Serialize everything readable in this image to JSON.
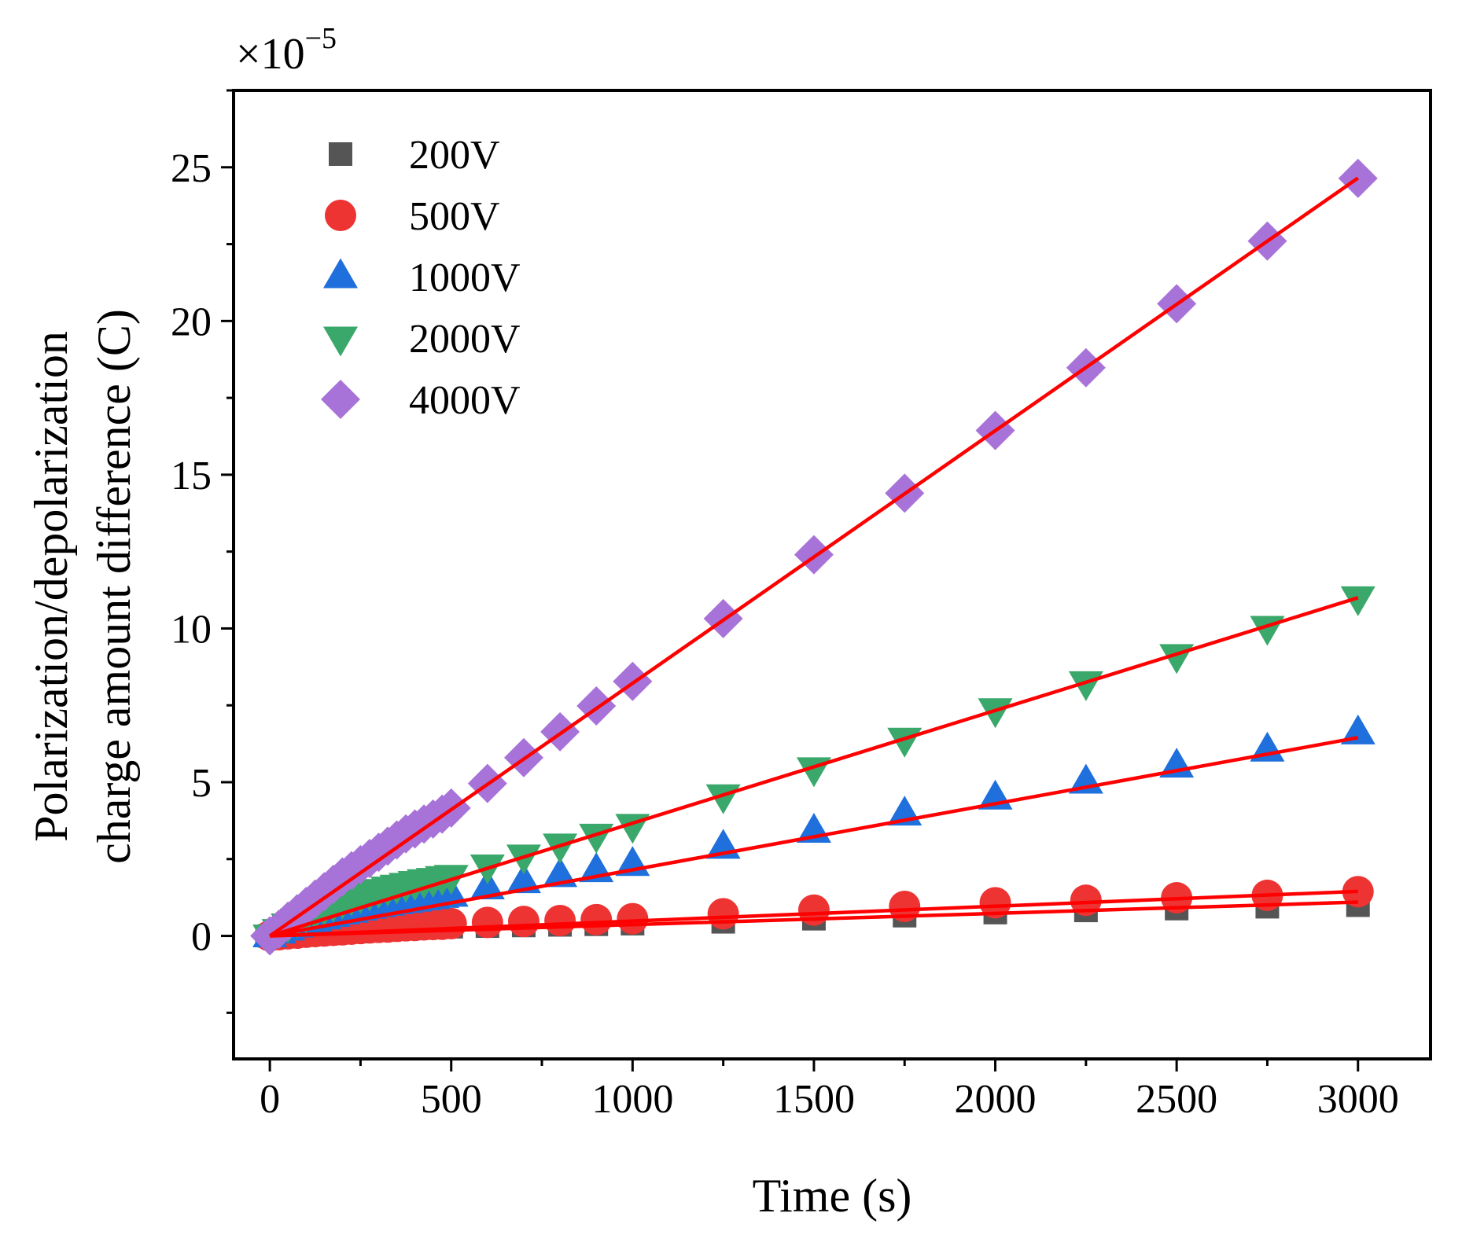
{
  "chart_data": {
    "type": "scatter",
    "title": "",
    "xlabel": "Time (s)",
    "ylabel_line1": "Polarization/depolarization",
    "ylabel_line2": "charge amount difference (C)",
    "multiplier_base": "×10",
    "multiplier_exp": "−5",
    "xlim": [
      -100,
      3200
    ],
    "ylim": [
      -4,
      27.5
    ],
    "xticks": [
      0,
      500,
      1000,
      1500,
      2000,
      2500,
      3000
    ],
    "xtick_labels": [
      "0",
      "500",
      "1000",
      "1500",
      "2000",
      "2500",
      "3000"
    ],
    "yticks": [
      0,
      5,
      10,
      15,
      20,
      25
    ],
    "ytick_labels": [
      "0",
      "5",
      "10",
      "15",
      "20",
      "25"
    ],
    "legend_position": "top-left",
    "fit_color": "#ff0000",
    "x": [
      0,
      25,
      50,
      75,
      100,
      125,
      150,
      175,
      200,
      225,
      250,
      275,
      300,
      325,
      350,
      375,
      400,
      425,
      450,
      475,
      500,
      600,
      700,
      800,
      900,
      1000,
      1250,
      1500,
      1750,
      2000,
      2250,
      2500,
      2750,
      3000
    ],
    "series": [
      {
        "name": "200V",
        "marker": "square",
        "color": "#555555",
        "values": [
          0,
          0.03,
          0.05,
          0.07,
          0.09,
          0.11,
          0.12,
          0.14,
          0.16,
          0.17,
          0.19,
          0.2,
          0.21,
          0.22,
          0.24,
          0.25,
          0.26,
          0.27,
          0.28,
          0.29,
          0.3,
          0.32,
          0.34,
          0.36,
          0.38,
          0.4,
          0.46,
          0.56,
          0.66,
          0.76,
          0.83,
          0.89,
          0.95,
          1.0
        ],
        "fit": [
          0,
          1.1
        ]
      },
      {
        "name": "500V",
        "marker": "circle",
        "color": "#ee3333",
        "values": [
          0,
          0.04,
          0.07,
          0.09,
          0.12,
          0.14,
          0.16,
          0.18,
          0.2,
          0.22,
          0.24,
          0.26,
          0.28,
          0.29,
          0.31,
          0.33,
          0.34,
          0.36,
          0.37,
          0.38,
          0.4,
          0.44,
          0.47,
          0.5,
          0.53,
          0.56,
          0.72,
          0.84,
          0.96,
          1.08,
          1.16,
          1.24,
          1.32,
          1.44
        ],
        "fit": [
          0,
          1.45
        ]
      },
      {
        "name": "1000V",
        "marker": "triangle-up",
        "color": "#1f6fdc",
        "values": [
          0,
          0.12,
          0.22,
          0.32,
          0.41,
          0.5,
          0.58,
          0.66,
          0.74,
          0.8,
          0.87,
          0.93,
          0.98,
          1.03,
          1.08,
          1.12,
          1.16,
          1.2,
          1.24,
          1.28,
          1.32,
          1.56,
          1.76,
          1.96,
          2.12,
          2.32,
          2.88,
          3.4,
          3.96,
          4.48,
          5.0,
          5.52,
          6.04,
          6.6
        ],
        "fit": [
          0,
          6.45
        ]
      },
      {
        "name": "2000V",
        "marker": "triangle-down",
        "color": "#3aa86a",
        "values": [
          0,
          0.18,
          0.36,
          0.52,
          0.66,
          0.8,
          0.92,
          1.04,
          1.14,
          1.24,
          1.32,
          1.4,
          1.48,
          1.56,
          1.62,
          1.68,
          1.74,
          1.8,
          1.84,
          1.9,
          1.94,
          2.28,
          2.6,
          2.96,
          3.28,
          3.6,
          4.56,
          5.44,
          6.4,
          7.36,
          8.24,
          9.12,
          10.04,
          11.0
        ],
        "fit": [
          0,
          11.0
        ]
      },
      {
        "name": "4000V",
        "marker": "diamond",
        "color": "#a873d8",
        "values": [
          0,
          0.22,
          0.48,
          0.72,
          0.96,
          1.2,
          1.44,
          1.68,
          1.92,
          2.12,
          2.32,
          2.52,
          2.72,
          2.92,
          3.12,
          3.32,
          3.48,
          3.64,
          3.8,
          3.96,
          4.16,
          4.96,
          5.8,
          6.64,
          7.48,
          8.28,
          10.32,
          12.4,
          14.4,
          16.44,
          18.48,
          20.56,
          22.6,
          24.64
        ],
        "fit": [
          0,
          24.65
        ]
      }
    ]
  }
}
